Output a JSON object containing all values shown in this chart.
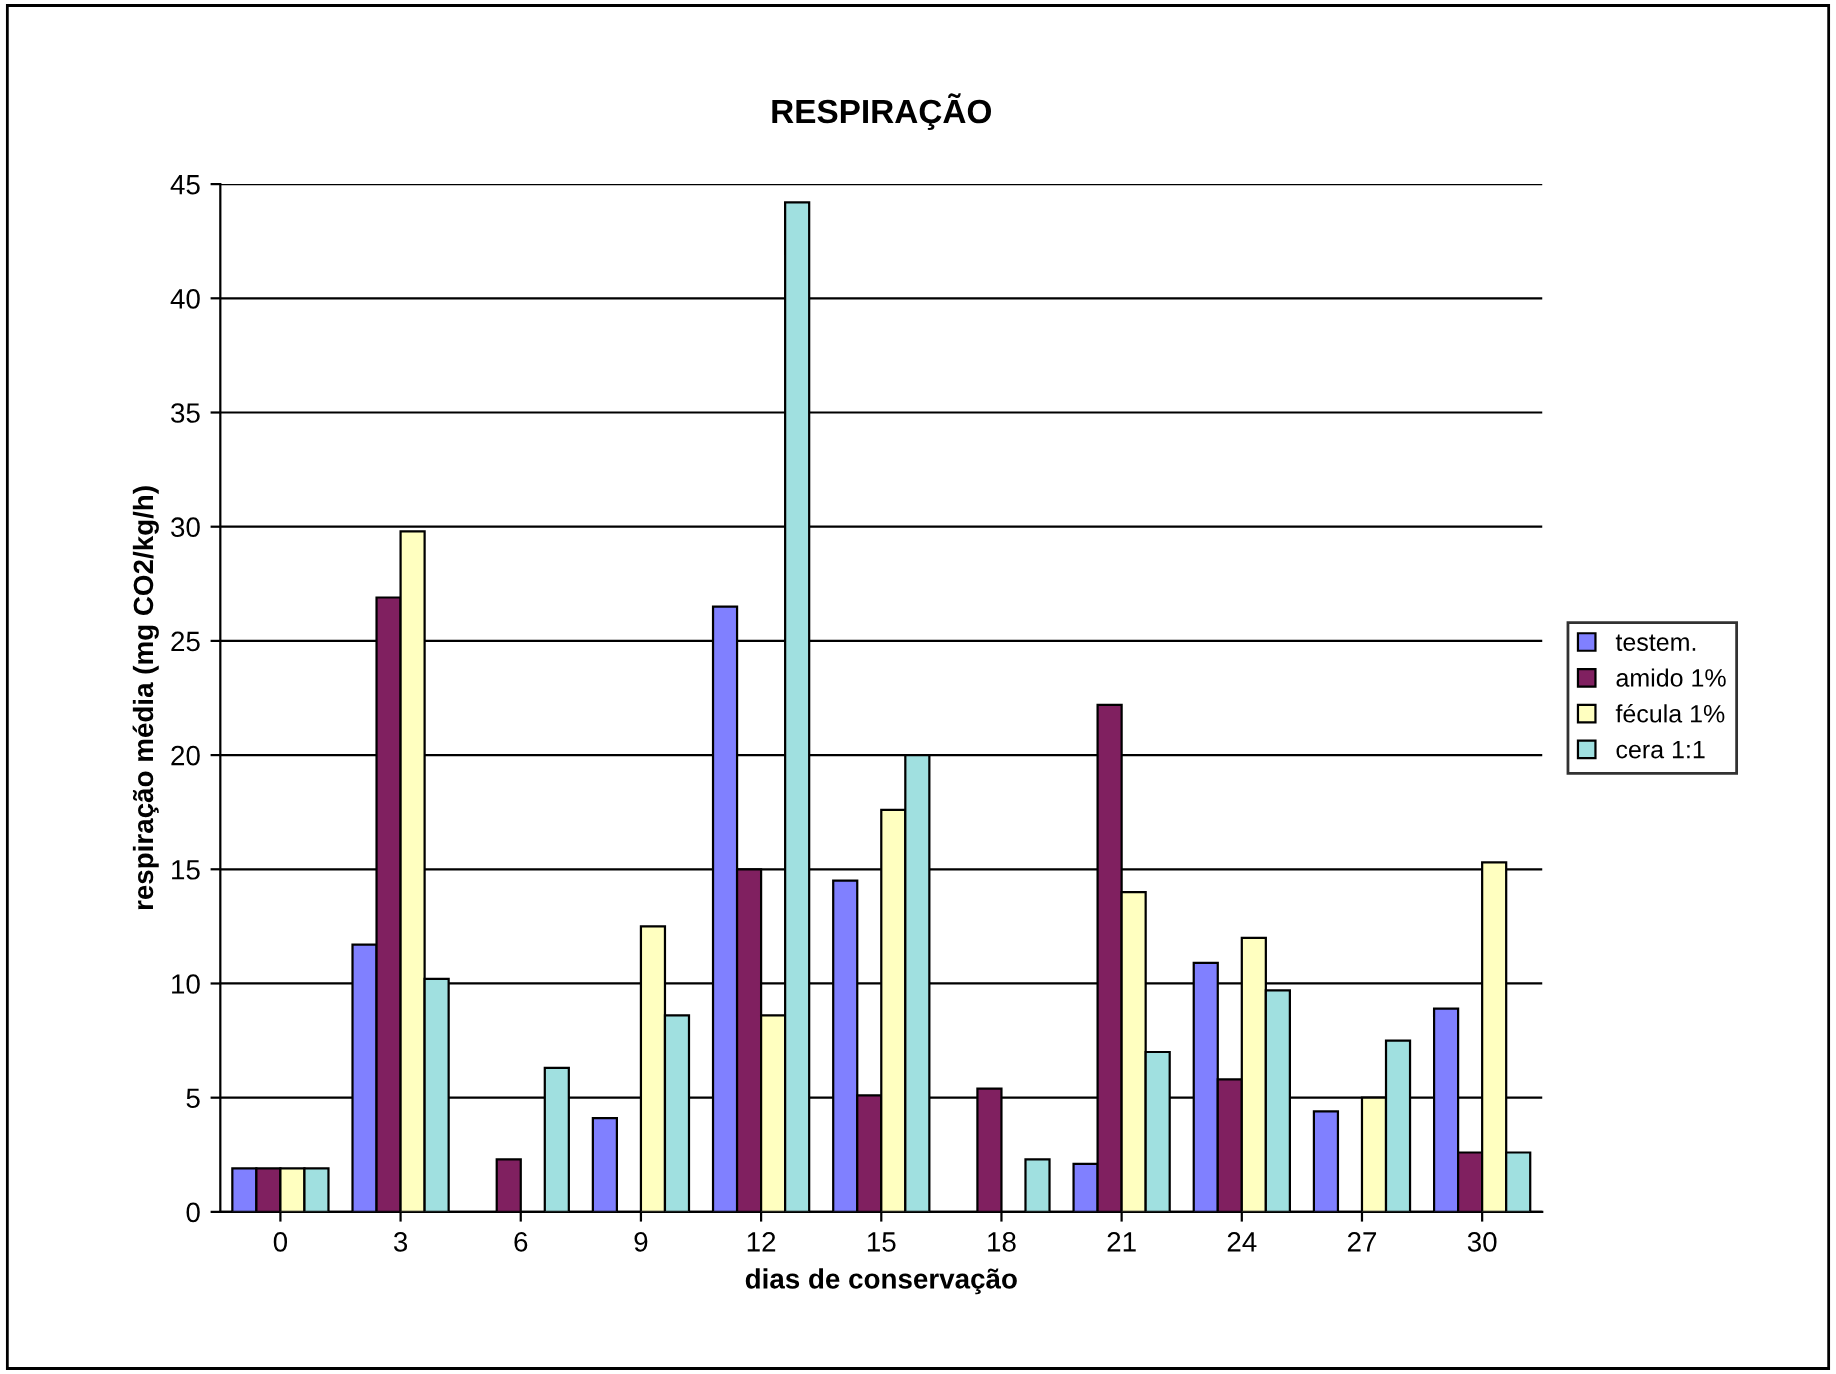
{
  "chart_data": {
    "type": "bar",
    "title": "RESPIRAÇÃO",
    "xlabel": "dias de conservação",
    "ylabel": "respiração média (mg CO2/kg/h)",
    "categories": [
      "0",
      "3",
      "6",
      "9",
      "12",
      "15",
      "18",
      "21",
      "24",
      "27",
      "30"
    ],
    "series": [
      {
        "name": "testem.",
        "color": "#8080ff",
        "values": [
          1.9,
          11.7,
          0,
          4.1,
          26.5,
          14.5,
          0,
          2.1,
          10.9,
          4.4,
          8.9
        ]
      },
      {
        "name": "amido 1%",
        "color": "#802060",
        "values": [
          1.9,
          26.9,
          2.3,
          0,
          15,
          5.1,
          5.4,
          22.2,
          5.8,
          0,
          2.6
        ]
      },
      {
        "name": "fécula 1%",
        "color": "#ffffc0",
        "values": [
          1.9,
          29.8,
          0,
          12.5,
          8.6,
          17.6,
          0,
          14,
          12,
          5,
          15.3
        ]
      },
      {
        "name": "cera 1:1",
        "color": "#a0e0e0",
        "values": [
          1.9,
          10.2,
          6.3,
          8.6,
          44.2,
          20,
          2.3,
          7,
          9.7,
          7.5,
          2.6
        ]
      }
    ],
    "ylim": [
      0,
      45
    ],
    "yticks": [
      0,
      5,
      10,
      15,
      20,
      25,
      30,
      35,
      40,
      45
    ],
    "grid": "y",
    "legend": "right"
  }
}
